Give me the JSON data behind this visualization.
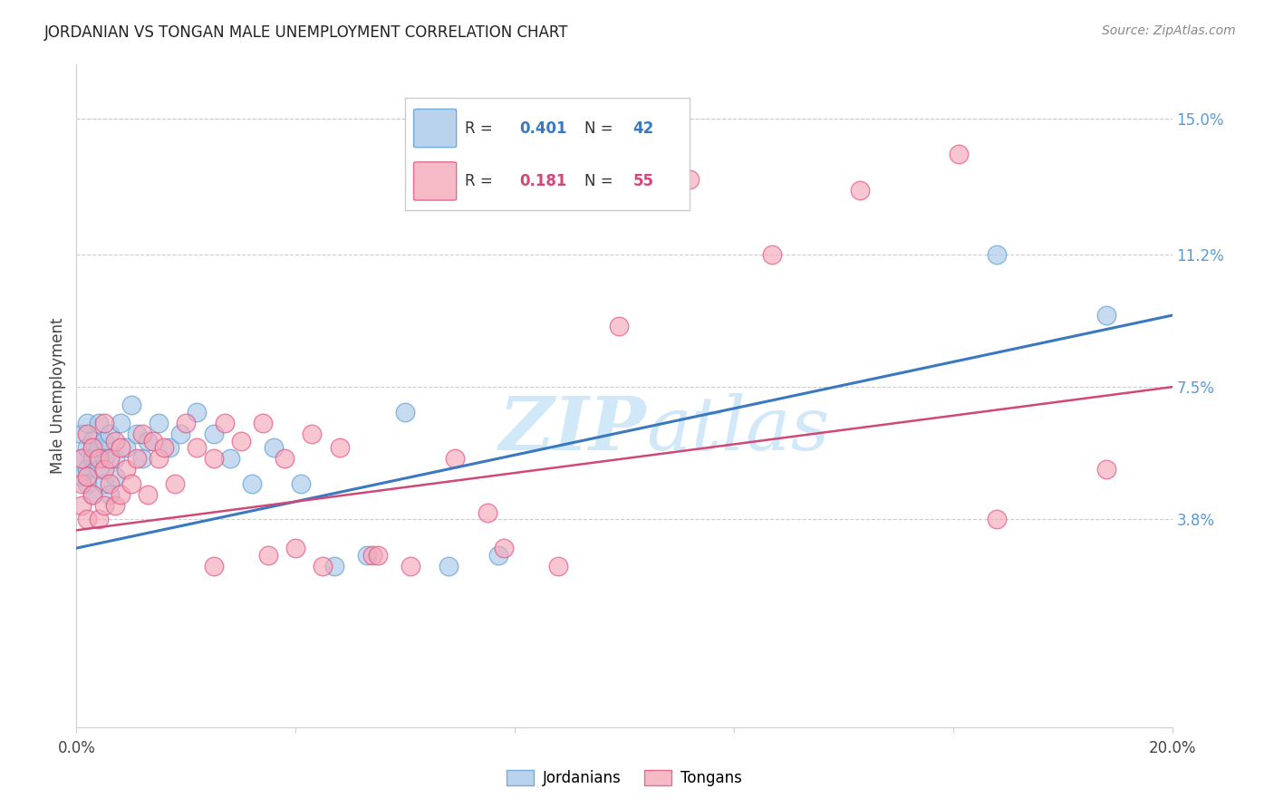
{
  "title": "JORDANIAN VS TONGAN MALE UNEMPLOYMENT CORRELATION CHART",
  "source": "Source: ZipAtlas.com",
  "ylabel": "Male Unemployment",
  "y_tick_vals_right": [
    0.038,
    0.075,
    0.112,
    0.15
  ],
  "y_tick_labels_right": [
    "3.8%",
    "7.5%",
    "11.2%",
    "15.0%"
  ],
  "xlim": [
    0.0,
    0.2
  ],
  "ylim": [
    -0.02,
    0.165
  ],
  "legend_r_jordan": "0.401",
  "legend_n_jordan": "42",
  "legend_r_tonga": "0.181",
  "legend_n_tonga": "55",
  "blue_scatter": "#a8c8e8",
  "blue_edge": "#5b9bd5",
  "pink_scatter": "#f4a8b8",
  "pink_edge": "#e05080",
  "blue_line": "#3a78c0",
  "pink_line": "#d04878",
  "watermark_color": "#d0e8f8",
  "background_color": "#ffffff",
  "jordan_x": [
    0.001,
    0.001,
    0.001,
    0.002,
    0.002,
    0.002,
    0.002,
    0.003,
    0.003,
    0.003,
    0.004,
    0.004,
    0.004,
    0.005,
    0.005,
    0.005,
    0.006,
    0.006,
    0.007,
    0.007,
    0.008,
    0.009,
    0.01,
    0.011,
    0.012,
    0.013,
    0.015,
    0.017,
    0.019,
    0.022,
    0.025,
    0.028,
    0.032,
    0.036,
    0.041,
    0.047,
    0.053,
    0.06,
    0.068,
    0.077,
    0.168,
    0.188
  ],
  "jordan_y": [
    0.055,
    0.062,
    0.05,
    0.058,
    0.065,
    0.052,
    0.048,
    0.06,
    0.055,
    0.045,
    0.058,
    0.065,
    0.052,
    0.06,
    0.055,
    0.048,
    0.062,
    0.045,
    0.055,
    0.05,
    0.065,
    0.058,
    0.07,
    0.062,
    0.055,
    0.06,
    0.065,
    0.058,
    0.062,
    0.068,
    0.062,
    0.055,
    0.048,
    0.058,
    0.048,
    0.025,
    0.028,
    0.068,
    0.025,
    0.028,
    0.112,
    0.095
  ],
  "tonga_x": [
    0.001,
    0.001,
    0.001,
    0.002,
    0.002,
    0.002,
    0.003,
    0.003,
    0.004,
    0.004,
    0.005,
    0.005,
    0.005,
    0.006,
    0.006,
    0.007,
    0.007,
    0.008,
    0.008,
    0.009,
    0.01,
    0.011,
    0.012,
    0.013,
    0.014,
    0.015,
    0.016,
    0.018,
    0.02,
    0.022,
    0.025,
    0.027,
    0.03,
    0.034,
    0.038,
    0.043,
    0.048,
    0.054,
    0.061,
    0.069,
    0.078,
    0.088,
    0.099,
    0.112,
    0.127,
    0.143,
    0.161,
    0.025,
    0.035,
    0.04,
    0.045,
    0.055,
    0.075,
    0.168,
    0.188
  ],
  "tonga_y": [
    0.055,
    0.048,
    0.042,
    0.062,
    0.038,
    0.05,
    0.058,
    0.045,
    0.055,
    0.038,
    0.065,
    0.052,
    0.042,
    0.048,
    0.055,
    0.06,
    0.042,
    0.058,
    0.045,
    0.052,
    0.048,
    0.055,
    0.062,
    0.045,
    0.06,
    0.055,
    0.058,
    0.048,
    0.065,
    0.058,
    0.055,
    0.065,
    0.06,
    0.065,
    0.055,
    0.062,
    0.058,
    0.028,
    0.025,
    0.055,
    0.03,
    0.025,
    0.092,
    0.133,
    0.112,
    0.13,
    0.14,
    0.025,
    0.028,
    0.03,
    0.025,
    0.028,
    0.04,
    0.038,
    0.052
  ]
}
